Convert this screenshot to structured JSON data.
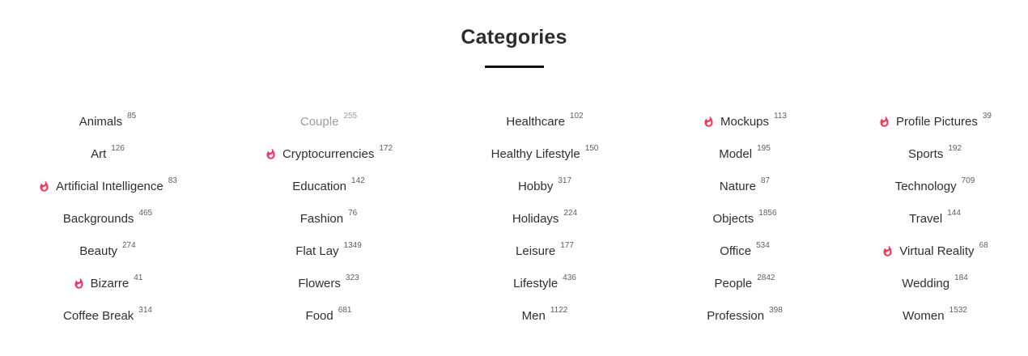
{
  "header": {
    "title": "Categories"
  },
  "colors": {
    "flame": "#f5365c",
    "text": "#2f2f2f",
    "count": "#5f5f5f",
    "active_muted": "#9c9c9c",
    "underline": "#101010"
  },
  "icons": {
    "flame": "flame-icon"
  },
  "columns": [
    {
      "items": [
        {
          "label": "Animals",
          "count": "85",
          "hot": false,
          "active": false
        },
        {
          "label": "Art",
          "count": "126",
          "hot": false,
          "active": false
        },
        {
          "label": "Artificial Intelligence",
          "count": "83",
          "hot": true,
          "active": false
        },
        {
          "label": "Backgrounds",
          "count": "465",
          "hot": false,
          "active": false
        },
        {
          "label": "Beauty",
          "count": "274",
          "hot": false,
          "active": false
        },
        {
          "label": "Bizarre",
          "count": "41",
          "hot": true,
          "active": false
        },
        {
          "label": "Coffee Break",
          "count": "314",
          "hot": false,
          "active": false
        }
      ]
    },
    {
      "items": [
        {
          "label": "Couple",
          "count": "255",
          "hot": false,
          "active": true
        },
        {
          "label": "Cryptocurrencies",
          "count": "172",
          "hot": true,
          "active": false
        },
        {
          "label": "Education",
          "count": "142",
          "hot": false,
          "active": false
        },
        {
          "label": "Fashion",
          "count": "76",
          "hot": false,
          "active": false
        },
        {
          "label": "Flat Lay",
          "count": "1349",
          "hot": false,
          "active": false
        },
        {
          "label": "Flowers",
          "count": "323",
          "hot": false,
          "active": false
        },
        {
          "label": "Food",
          "count": "681",
          "hot": false,
          "active": false
        }
      ]
    },
    {
      "items": [
        {
          "label": "Healthcare",
          "count": "102",
          "hot": false,
          "active": false
        },
        {
          "label": "Healthy Lifestyle",
          "count": "150",
          "hot": false,
          "active": false
        },
        {
          "label": "Hobby",
          "count": "317",
          "hot": false,
          "active": false
        },
        {
          "label": "Holidays",
          "count": "224",
          "hot": false,
          "active": false
        },
        {
          "label": "Leisure",
          "count": "177",
          "hot": false,
          "active": false
        },
        {
          "label": "Lifestyle",
          "count": "436",
          "hot": false,
          "active": false
        },
        {
          "label": "Men",
          "count": "1122",
          "hot": false,
          "active": false
        }
      ]
    },
    {
      "items": [
        {
          "label": "Mockups",
          "count": "113",
          "hot": true,
          "active": false
        },
        {
          "label": "Model",
          "count": "195",
          "hot": false,
          "active": false
        },
        {
          "label": "Nature",
          "count": "87",
          "hot": false,
          "active": false
        },
        {
          "label": "Objects",
          "count": "1856",
          "hot": false,
          "active": false
        },
        {
          "label": "Office",
          "count": "534",
          "hot": false,
          "active": false
        },
        {
          "label": "People",
          "count": "2842",
          "hot": false,
          "active": false
        },
        {
          "label": "Profession",
          "count": "398",
          "hot": false,
          "active": false
        }
      ]
    },
    {
      "items": [
        {
          "label": "Profile Pictures",
          "count": "39",
          "hot": true,
          "active": false
        },
        {
          "label": "Sports",
          "count": "192",
          "hot": false,
          "active": false
        },
        {
          "label": "Technology",
          "count": "709",
          "hot": false,
          "active": false
        },
        {
          "label": "Travel",
          "count": "144",
          "hot": false,
          "active": false
        },
        {
          "label": "Virtual Reality",
          "count": "68",
          "hot": true,
          "active": false
        },
        {
          "label": "Wedding",
          "count": "184",
          "hot": false,
          "active": false
        },
        {
          "label": "Women",
          "count": "1532",
          "hot": false,
          "active": false
        }
      ]
    }
  ]
}
